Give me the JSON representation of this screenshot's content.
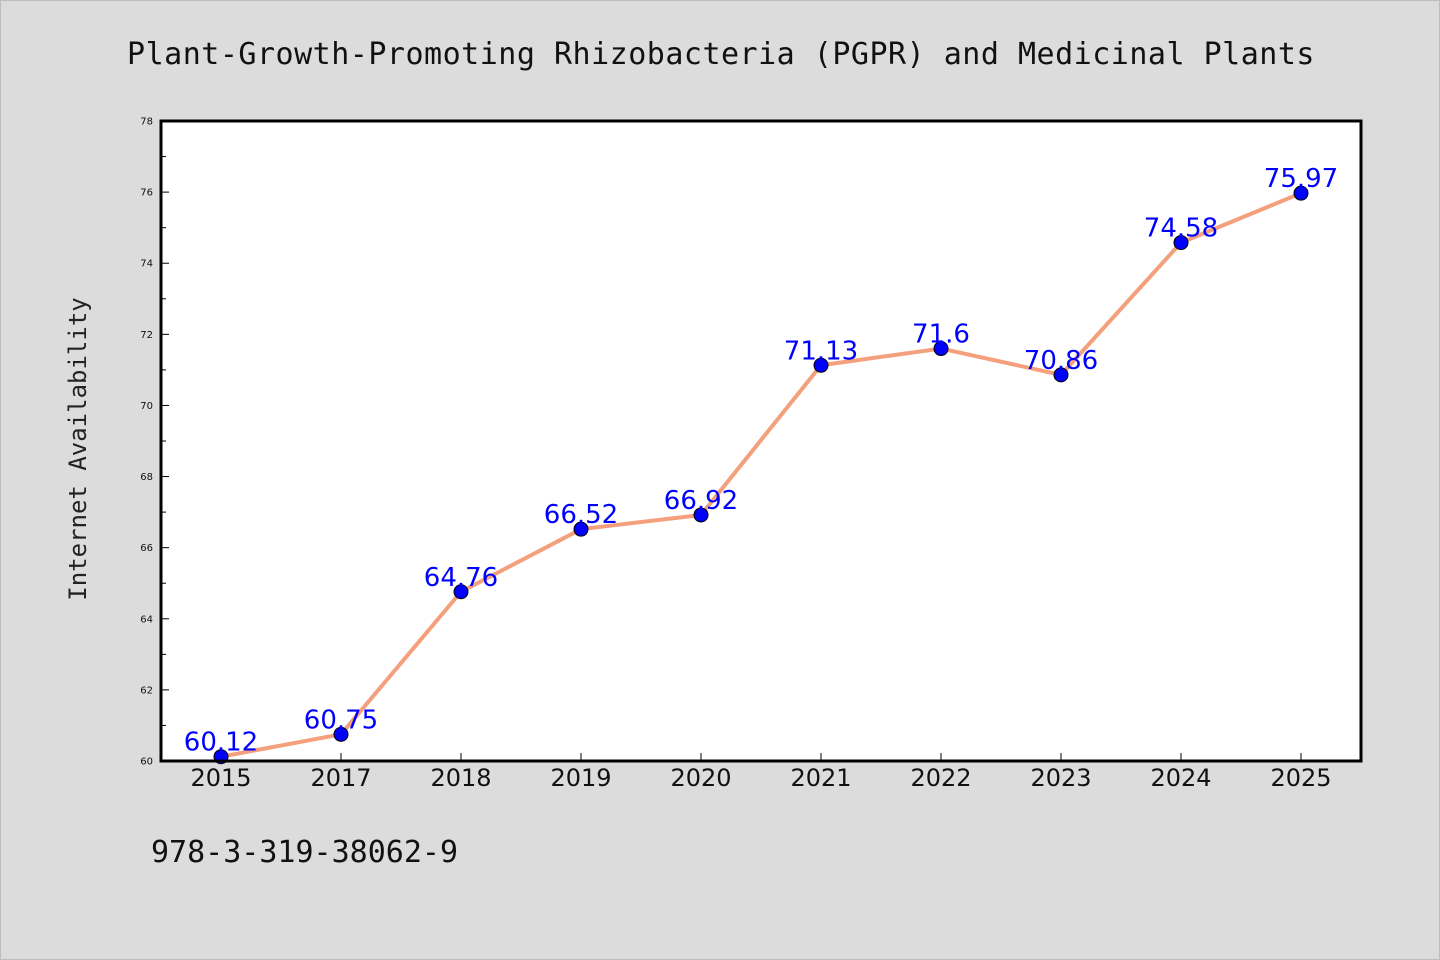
{
  "chart_data": {
    "type": "line",
    "title": "Plant-Growth-Promoting Rhizobacteria (PGPR) and Medicinal Plants",
    "xlabel": "",
    "ylabel": "Internet Availability",
    "categories": [
      "2015",
      "2017",
      "2018",
      "2019",
      "2020",
      "2021",
      "2022",
      "2023",
      "2024",
      "2025"
    ],
    "series": [
      {
        "values": [
          60.12,
          60.75,
          64.76,
          66.52,
          66.92,
          71.13,
          71.6,
          70.86,
          74.58,
          75.97
        ],
        "labels": [
          "60.12",
          "60.75",
          "64.76",
          "66.52",
          "66.92",
          "71.13",
          "71.6",
          "70.86",
          "74.58",
          "75.97"
        ],
        "line_color": "#f4a07c",
        "marker_color": "#0000ff",
        "label_color": "#0000ff"
      }
    ],
    "ylim": [
      60,
      78
    ],
    "yticks": [
      "60",
      "62",
      "64",
      "66",
      "68",
      "70",
      "72",
      "74",
      "76",
      "78"
    ],
    "grid": false,
    "legend": "none"
  },
  "footer": {
    "identifier": "978-3-319-38062-9"
  },
  "colors": {
    "background": "#dcdcdc",
    "plot_background": "#ffffff",
    "axis": "#000000"
  }
}
